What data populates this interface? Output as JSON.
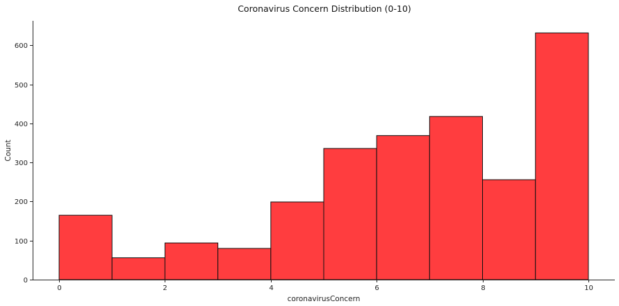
{
  "chart_data": {
    "type": "bar",
    "title": "Coronavirus Concern Distribution (0-10)",
    "xlabel": "coronavirusConcern",
    "ylabel": "Count",
    "bins": [
      {
        "start": 0,
        "end": 1,
        "count": 165
      },
      {
        "start": 1,
        "end": 2,
        "count": 56
      },
      {
        "start": 2,
        "end": 3,
        "count": 94
      },
      {
        "start": 3,
        "end": 4,
        "count": 80
      },
      {
        "start": 4,
        "end": 5,
        "count": 199
      },
      {
        "start": 5,
        "end": 6,
        "count": 336
      },
      {
        "start": 6,
        "end": 7,
        "count": 369
      },
      {
        "start": 7,
        "end": 8,
        "count": 418
      },
      {
        "start": 8,
        "end": 9,
        "count": 256
      },
      {
        "start": 9,
        "end": 10,
        "count": 632
      }
    ],
    "xticks": [
      0,
      2,
      4,
      6,
      8,
      10
    ],
    "yticks": [
      0,
      100,
      200,
      300,
      400,
      500,
      600
    ],
    "xlim": [
      -0.5,
      10.5
    ],
    "ylim": [
      0,
      663
    ],
    "bar_color": "#ff3d3f",
    "edge_color": "#111111",
    "grid": false,
    "legend": "none"
  }
}
